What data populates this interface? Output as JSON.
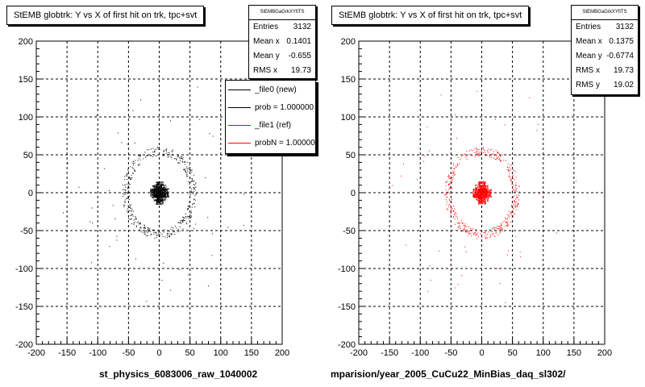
{
  "chart_data": [
    {
      "type": "scatter",
      "title": "StEMB globtrk: Y vs X of first hit on trk, tpc+svt",
      "xlabel": "st_physics_6083006_raw_1040002",
      "ylabel": "",
      "xlim": [
        -200,
        200
      ],
      "ylim": [
        -200,
        200
      ],
      "x_ticks": [
        "-200",
        "-150",
        "-100",
        "-50",
        "0",
        "50",
        "100",
        "150",
        "200"
      ],
      "y_ticks": [
        "200",
        "150",
        "100",
        "50",
        "0",
        "-50",
        "-100",
        "-150",
        "-200"
      ],
      "grid": true,
      "marker_color": "#000000",
      "core": {
        "x_range": [
          -15,
          15
        ],
        "y_range": [
          -15,
          15
        ],
        "cross_half_width": 6
      },
      "ring": {
        "center": [
          0,
          0
        ],
        "radius": 55,
        "width": 12
      },
      "stats": {
        "header": "StEMBGaGrkXYfiTS",
        "rows": [
          {
            "label": "Entries",
            "value": "3132"
          },
          {
            "label": "Mean x",
            "value": "0.1401"
          },
          {
            "label": "Mean y",
            "value": "-0.655"
          },
          {
            "label": "RMS x",
            "value": "19.73"
          }
        ]
      },
      "legend": {
        "placement": "top-right",
        "entries": [
          {
            "label": "_file0 (new)",
            "color": "#000000"
          },
          {
            "label": "prob = 1.000000",
            "color": "#000000"
          },
          {
            "label": "_file1 (ref)",
            "color": "#ff0000"
          },
          {
            "label": "probN = 1.000000",
            "color": "#ff0000"
          }
        ]
      }
    },
    {
      "type": "scatter",
      "title": "StEMB globtrk: Y vs X of first hit on trk, tpc+svt",
      "xlabel": "mparision/year_2005_CuCu22_MinBias_daq_sl302/",
      "ylabel": "",
      "xlim": [
        -200,
        200
      ],
      "ylim": [
        -200,
        200
      ],
      "x_ticks": [
        "-200",
        "-150",
        "-100",
        "-50",
        "0",
        "50",
        "100",
        "150",
        "200"
      ],
      "y_ticks": [
        "200",
        "150",
        "100",
        "50",
        "0",
        "-50",
        "-100",
        "-150",
        "-200"
      ],
      "grid": true,
      "marker_color": "#ff0000",
      "core": {
        "x_range": [
          -15,
          15
        ],
        "y_range": [
          -15,
          15
        ],
        "cross_half_width": 6
      },
      "ring": {
        "center": [
          0,
          0
        ],
        "radius": 55,
        "width": 12
      },
      "stats": {
        "header": "StEMBGaGrkXYfiTS",
        "rows": [
          {
            "label": "Entries",
            "value": "3132"
          },
          {
            "label": "Mean x",
            "value": "0.1375"
          },
          {
            "label": "Mean y",
            "value": "-0.6774"
          },
          {
            "label": "RMS x",
            "value": "19.73"
          },
          {
            "label": "RMS y",
            "value": "19.02"
          }
        ]
      }
    }
  ]
}
